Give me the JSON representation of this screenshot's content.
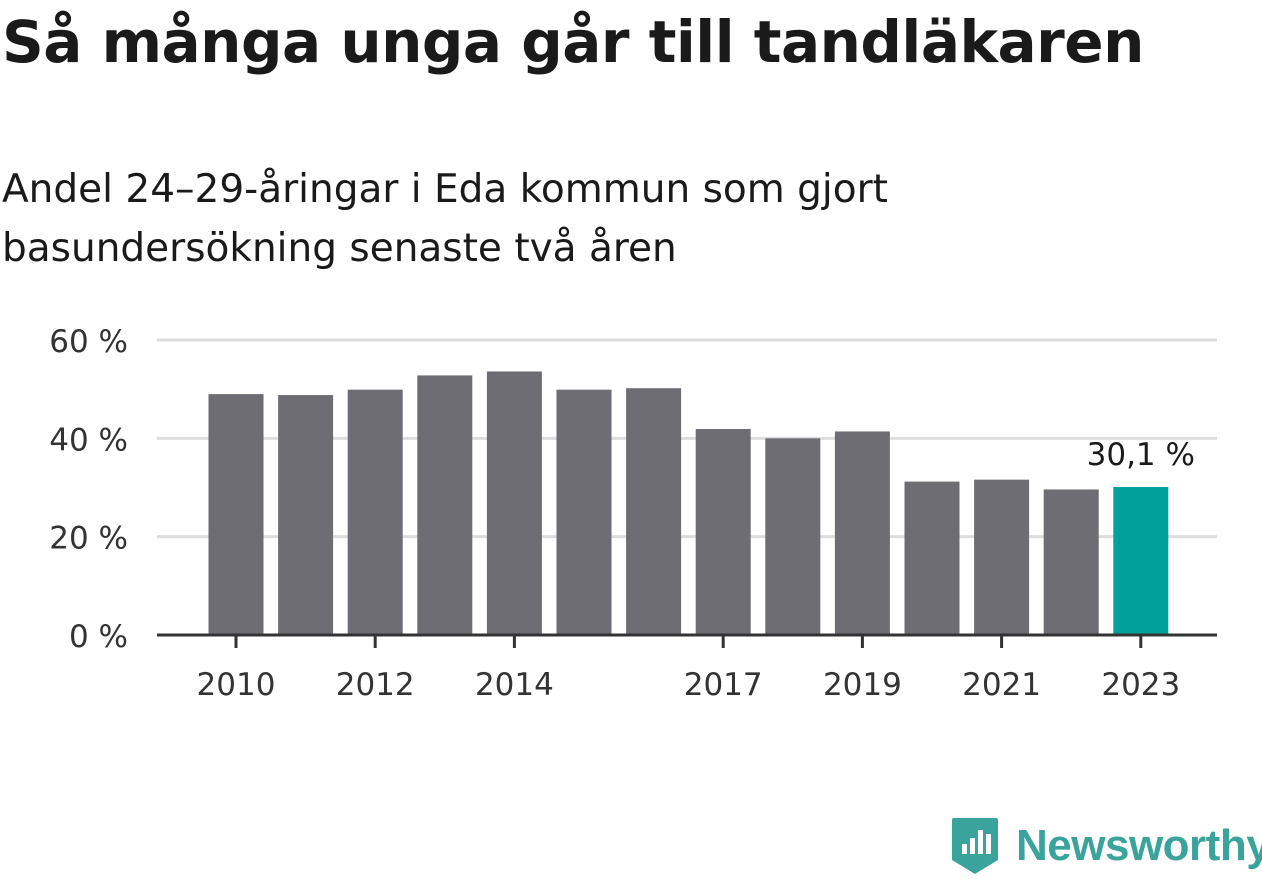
{
  "title": "Så många unga går till tandläkaren",
  "subtitle": "Andel 24–29-åringar i Eda kommun som gjort basundersökning senaste två åren",
  "logo_text": "Newsworthy",
  "colors": {
    "bar": "#6e6d74",
    "highlight": "#00a19a",
    "grid": "#dddddd",
    "axis": "#333333",
    "brand": "#3aa39b"
  },
  "chart_data": {
    "type": "bar",
    "title": "Så många unga går till tandläkaren",
    "subtitle": "Andel 24–29-åringar i Eda kommun som gjort basundersökning senaste två åren",
    "categories": [
      "2010",
      "2011",
      "2012",
      "2013",
      "2014",
      "2015",
      "2016",
      "2017",
      "2018",
      "2019",
      "2020",
      "2021",
      "2022",
      "2023"
    ],
    "values": [
      49.0,
      48.8,
      49.9,
      52.8,
      53.6,
      49.9,
      50.2,
      41.9,
      40.0,
      41.4,
      31.2,
      31.6,
      29.6,
      30.1
    ],
    "highlight_index": 13,
    "highlight_label": "30,1 %",
    "ylim": [
      0,
      60
    ],
    "yticks": [
      0,
      20,
      40,
      60
    ],
    "ytick_labels": [
      "0 %",
      "20 %",
      "40 %",
      "60 %"
    ],
    "xtick_labels": [
      "2010",
      "2012",
      "2014",
      "2017",
      "2019",
      "2021",
      "2023"
    ],
    "xlabel": "",
    "ylabel": "",
    "grid": true
  }
}
